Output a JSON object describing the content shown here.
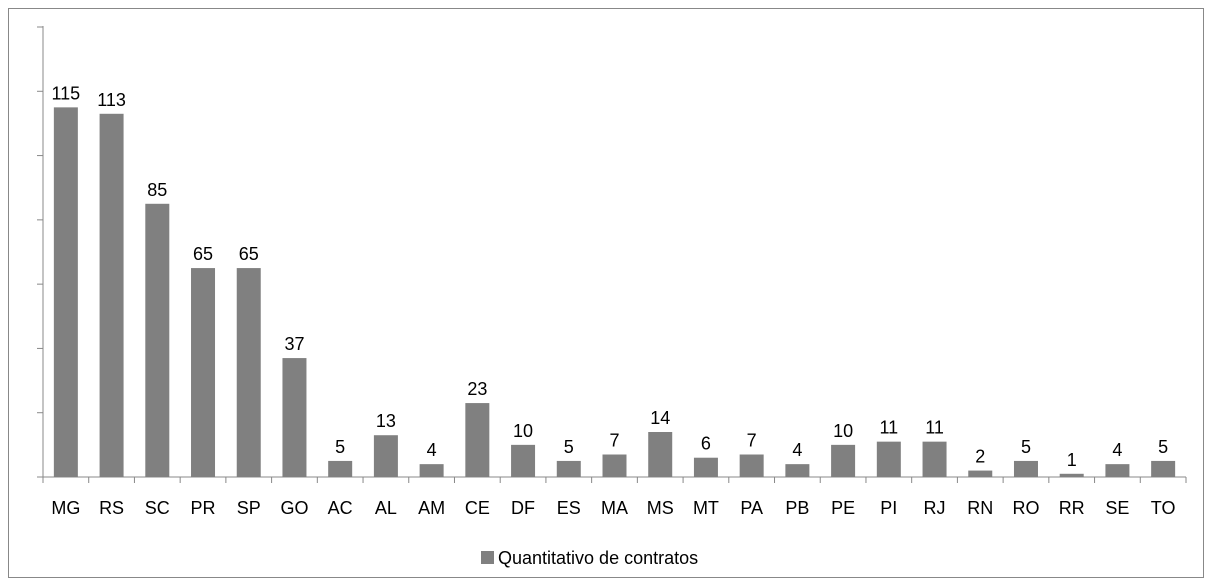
{
  "chart_data": {
    "type": "bar",
    "categories": [
      "MG",
      "RS",
      "SC",
      "PR",
      "SP",
      "GO",
      "AC",
      "AL",
      "AM",
      "CE",
      "DF",
      "ES",
      "MA",
      "MS",
      "MT",
      "PA",
      "PB",
      "PE",
      "PI",
      "RJ",
      "RN",
      "RO",
      "RR",
      "SE",
      "TO"
    ],
    "series": [
      {
        "name": "Quantitativo de contratos",
        "values": [
          115,
          113,
          85,
          65,
          65,
          37,
          5,
          13,
          4,
          23,
          10,
          5,
          7,
          14,
          6,
          7,
          4,
          10,
          11,
          11,
          2,
          5,
          1,
          4,
          5
        ]
      }
    ],
    "data_labels": [
      "115",
      "113",
      "85",
      "65",
      "65",
      "37",
      "5",
      "13",
      "4",
      "23",
      "10",
      "5",
      "7",
      "14",
      "6",
      "7",
      "4",
      "10",
      "11",
      "11",
      "2",
      "5",
      "1",
      "4",
      "5"
    ],
    "ylim": [
      0,
      140
    ],
    "y_tick_step": 20,
    "y_tick_labels_visible": false,
    "grid": false,
    "legend": "bottom",
    "colors": {
      "bar": "#808080",
      "axis": "#888888"
    }
  }
}
